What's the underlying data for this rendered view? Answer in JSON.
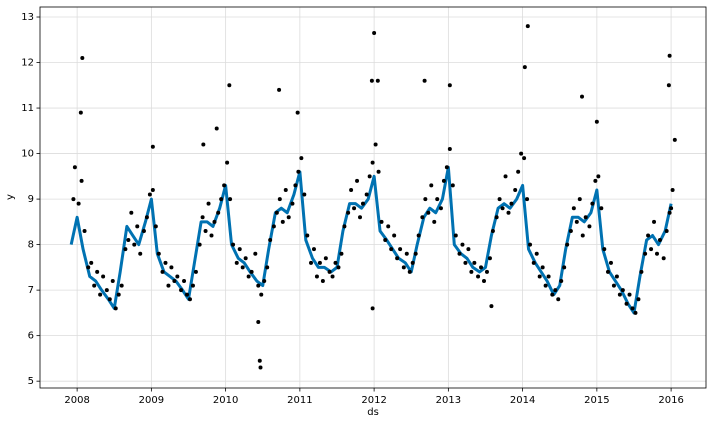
{
  "chart_data": {
    "type": "scatter",
    "xlabel": "ds",
    "ylabel": "y",
    "xlim": [
      2007.5,
      2016.47
    ],
    "ylim": [
      4.85,
      13.22
    ],
    "xticks": [
      2008,
      2009,
      2010,
      2011,
      2012,
      2013,
      2014,
      2015,
      2016
    ],
    "yticks": [
      5,
      6,
      7,
      8,
      9,
      10,
      11,
      12,
      13
    ],
    "grid": true,
    "series": [
      {
        "type": "line",
        "color": "#0072B2",
        "x": [
          2007.92,
          2008,
          2008.08,
          2008.17,
          2008.25,
          2008.33,
          2008.42,
          2008.5,
          2008.58,
          2008.67,
          2008.75,
          2008.83,
          2008.92,
          2009,
          2009.08,
          2009.17,
          2009.25,
          2009.33,
          2009.42,
          2009.5,
          2009.58,
          2009.67,
          2009.75,
          2009.83,
          2009.92,
          2010,
          2010.08,
          2010.17,
          2010.25,
          2010.33,
          2010.42,
          2010.5,
          2010.58,
          2010.67,
          2010.75,
          2010.83,
          2010.92,
          2011,
          2011.08,
          2011.17,
          2011.25,
          2011.33,
          2011.42,
          2011.5,
          2011.58,
          2011.67,
          2011.75,
          2011.83,
          2011.92,
          2012,
          2012.08,
          2012.17,
          2012.25,
          2012.33,
          2012.42,
          2012.5,
          2012.58,
          2012.67,
          2012.75,
          2012.83,
          2012.92,
          2013,
          2013.08,
          2013.17,
          2013.25,
          2013.33,
          2013.42,
          2013.5,
          2013.58,
          2013.67,
          2013.75,
          2013.83,
          2013.92,
          2014,
          2014.08,
          2014.17,
          2014.25,
          2014.33,
          2014.42,
          2014.5,
          2014.58,
          2014.67,
          2014.75,
          2014.83,
          2014.92,
          2015,
          2015.08,
          2015.17,
          2015.25,
          2015.33,
          2015.42,
          2015.5,
          2015.58,
          2015.67,
          2015.75,
          2015.83,
          2015.92,
          2016
        ],
        "values": [
          8.0,
          8.6,
          7.9,
          7.3,
          7.2,
          7.0,
          6.8,
          6.6,
          7.4,
          8.4,
          8.2,
          8.0,
          8.5,
          9.0,
          7.8,
          7.4,
          7.3,
          7.2,
          7.0,
          6.8,
          7.6,
          8.5,
          8.5,
          8.4,
          8.8,
          9.3,
          8.0,
          7.7,
          7.6,
          7.4,
          7.2,
          7.1,
          7.9,
          8.7,
          8.8,
          8.7,
          9.1,
          9.6,
          8.1,
          7.7,
          7.5,
          7.5,
          7.4,
          7.5,
          8.3,
          8.9,
          8.9,
          8.8,
          9.0,
          9.5,
          8.3,
          8.1,
          7.9,
          7.7,
          7.6,
          7.4,
          8.0,
          8.6,
          8.8,
          8.7,
          9.0,
          9.7,
          8.0,
          7.8,
          7.7,
          7.5,
          7.4,
          7.5,
          8.2,
          8.8,
          8.9,
          8.8,
          9.0,
          9.3,
          7.9,
          7.6,
          7.4,
          7.2,
          6.9,
          7.1,
          7.9,
          8.6,
          8.6,
          8.5,
          8.7,
          9.2,
          7.9,
          7.4,
          7.2,
          7.0,
          6.7,
          6.5,
          7.3,
          8.1,
          8.2,
          8.0,
          8.3,
          8.9
        ]
      },
      {
        "type": "scatter",
        "color": "#000000",
        "x": [
          2008.02,
          2008.06,
          2008.1,
          2008.15,
          2008.19,
          2008.23,
          2008.27,
          2008.31,
          2008.35,
          2008.4,
          2008.44,
          2008.48,
          2008.52,
          2008.56,
          2008.6,
          2008.65,
          2008.69,
          2008.73,
          2008.77,
          2008.81,
          2008.85,
          2008.9,
          2008.94,
          2008.98,
          2009.02,
          2009.06,
          2009.1,
          2009.15,
          2009.19,
          2009.23,
          2009.27,
          2009.31,
          2009.35,
          2009.4,
          2009.44,
          2009.48,
          2009.52,
          2009.56,
          2009.6,
          2009.65,
          2009.69,
          2009.73,
          2009.77,
          2009.81,
          2009.85,
          2009.9,
          2009.94,
          2009.98,
          2010.02,
          2010.06,
          2010.1,
          2010.15,
          2010.19,
          2010.23,
          2010.27,
          2010.31,
          2010.35,
          2010.4,
          2010.44,
          2010.48,
          2010.52,
          2010.56,
          2010.6,
          2010.65,
          2010.69,
          2010.73,
          2010.77,
          2010.81,
          2010.85,
          2010.9,
          2010.94,
          2010.98,
          2011.02,
          2011.06,
          2011.1,
          2011.15,
          2011.19,
          2011.23,
          2011.27,
          2011.31,
          2011.35,
          2011.4,
          2011.44,
          2011.48,
          2011.52,
          2011.56,
          2011.6,
          2011.65,
          2011.69,
          2011.73,
          2011.77,
          2011.81,
          2011.85,
          2011.9,
          2011.94,
          2011.98,
          2012.02,
          2012.06,
          2012.1,
          2012.15,
          2012.19,
          2012.23,
          2012.27,
          2012.31,
          2012.35,
          2012.4,
          2012.44,
          2012.48,
          2012.52,
          2012.56,
          2012.6,
          2012.65,
          2012.69,
          2012.73,
          2012.77,
          2012.81,
          2012.85,
          2012.9,
          2012.94,
          2012.98,
          2013.02,
          2013.06,
          2013.1,
          2013.15,
          2013.19,
          2013.23,
          2013.27,
          2013.31,
          2013.35,
          2013.4,
          2013.44,
          2013.48,
          2013.52,
          2013.56,
          2013.6,
          2013.65,
          2013.69,
          2013.73,
          2013.77,
          2013.81,
          2013.85,
          2013.9,
          2013.94,
          2013.98,
          2014.02,
          2014.06,
          2014.1,
          2014.15,
          2014.19,
          2014.23,
          2014.27,
          2014.31,
          2014.35,
          2014.4,
          2014.44,
          2014.48,
          2014.52,
          2014.56,
          2014.6,
          2014.65,
          2014.69,
          2014.73,
          2014.77,
          2014.81,
          2014.85,
          2014.9,
          2014.94,
          2014.98,
          2015.02,
          2015.06,
          2015.1,
          2015.15,
          2015.19,
          2015.23,
          2015.27,
          2015.31,
          2015.35,
          2015.4,
          2015.44,
          2015.48,
          2015.52,
          2015.56,
          2015.6,
          2015.65,
          2015.69,
          2015.73,
          2015.77,
          2015.81,
          2015.85,
          2015.9,
          2015.94,
          2015.98,
          2008.07,
          2008.05,
          2007.97,
          2009.02,
          2009.7,
          2009.88,
          2010.05,
          2010.47,
          2010.46,
          2010.44,
          2010.72,
          2010.97,
          2011.97,
          2012,
          2011.98,
          2012.05,
          2012.68,
          2013.02,
          2013.58,
          2014.07,
          2014.03,
          2014.8,
          2015,
          2015.98,
          2015.97,
          2016.05,
          2016.02,
          2007.95,
          2016
        ],
        "values": [
          8.9,
          9.4,
          8.3,
          7.5,
          7.6,
          7.1,
          7.4,
          6.9,
          7.3,
          7.0,
          6.8,
          7.2,
          6.6,
          6.9,
          7.1,
          7.9,
          8.1,
          8.7,
          8.0,
          8.4,
          7.8,
          8.3,
          8.6,
          9.1,
          9.2,
          8.4,
          7.8,
          7.4,
          7.6,
          7.1,
          7.5,
          7.2,
          7.3,
          7.0,
          7.2,
          6.9,
          6.8,
          7.1,
          7.4,
          8.0,
          8.6,
          8.3,
          8.9,
          8.2,
          8.5,
          8.7,
          9.0,
          9.3,
          9.8,
          9.0,
          8.0,
          7.6,
          7.9,
          7.5,
          7.7,
          7.3,
          7.4,
          7.8,
          7.1,
          6.9,
          7.2,
          7.5,
          8.1,
          8.4,
          8.7,
          9.0,
          8.5,
          9.2,
          8.6,
          8.9,
          9.3,
          9.6,
          9.9,
          9.1,
          8.2,
          7.6,
          7.9,
          7.3,
          7.6,
          7.2,
          7.7,
          7.4,
          7.3,
          7.6,
          7.5,
          7.8,
          8.4,
          8.7,
          9.2,
          8.8,
          9.4,
          8.6,
          8.9,
          9.1,
          9.5,
          9.8,
          10.2,
          9.6,
          8.5,
          8.1,
          8.4,
          7.9,
          8.2,
          7.7,
          7.9,
          7.5,
          7.8,
          7.4,
          7.6,
          7.8,
          8.2,
          8.6,
          9.0,
          8.7,
          9.3,
          8.5,
          9.0,
          8.8,
          9.4,
          9.7,
          10.1,
          9.3,
          8.2,
          7.8,
          8.0,
          7.6,
          7.9,
          7.4,
          7.6,
          7.3,
          7.5,
          7.2,
          7.4,
          7.7,
          8.3,
          8.6,
          9.0,
          8.8,
          9.5,
          8.7,
          8.9,
          9.2,
          9.6,
          10.0,
          9.9,
          9.0,
          8.0,
          7.6,
          7.8,
          7.3,
          7.5,
          7.1,
          7.3,
          6.9,
          7.0,
          6.8,
          7.2,
          7.5,
          8.0,
          8.3,
          8.8,
          8.5,
          9.0,
          8.2,
          8.6,
          8.4,
          8.9,
          9.4,
          9.5,
          8.8,
          7.9,
          7.4,
          7.6,
          7.1,
          7.3,
          6.9,
          7.0,
          6.7,
          6.9,
          6.6,
          6.5,
          6.8,
          7.4,
          7.8,
          8.2,
          7.9,
          8.5,
          7.8,
          8.1,
          7.7,
          8.3,
          8.7,
          12.1,
          10.9,
          9.7,
          10.15,
          10.2,
          10.55,
          11.5,
          5.3,
          5.45,
          6.3,
          11.4,
          10.9,
          11.6,
          12.65,
          6.6,
          11.6,
          11.6,
          11.5,
          6.65,
          12.8,
          11.9,
          11.25,
          10.7,
          12.15,
          11.5,
          10.3,
          9.2,
          9.0,
          8.8
        ]
      }
    ]
  }
}
